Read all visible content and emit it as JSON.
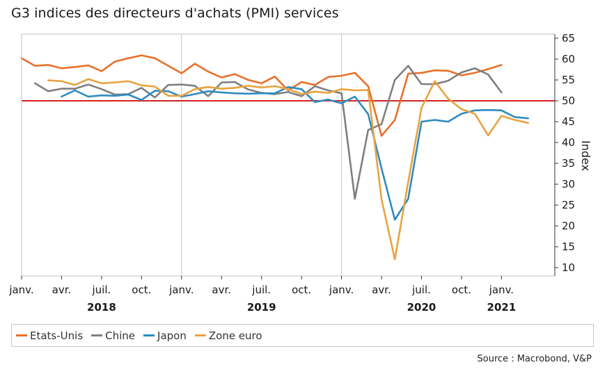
{
  "title": "G3 indices des directeurs d'achats (PMI) services",
  "source": "Source : Macrobond, V&P",
  "chart_data": {
    "type": "line",
    "ylabel": "Index",
    "ylim": [
      8,
      66
    ],
    "yticks": [
      10,
      15,
      20,
      25,
      30,
      35,
      40,
      45,
      50,
      55,
      60,
      65
    ],
    "reference_line": {
      "value": 50,
      "color": "#d62020"
    },
    "xlim": [
      "2018-01",
      "2021-05"
    ],
    "x_tick_labels": [
      {
        "date": "2018-01",
        "label": "janv."
      },
      {
        "date": "2018-04",
        "label": "avr."
      },
      {
        "date": "2018-07",
        "label": "juil."
      },
      {
        "date": "2018-10",
        "label": "oct."
      },
      {
        "date": "2019-01",
        "label": "janv."
      },
      {
        "date": "2019-04",
        "label": "avr."
      },
      {
        "date": "2019-07",
        "label": "juil."
      },
      {
        "date": "2019-10",
        "label": "oct."
      },
      {
        "date": "2020-01",
        "label": "janv."
      },
      {
        "date": "2020-04",
        "label": "avr."
      },
      {
        "date": "2020-07",
        "label": "juil."
      },
      {
        "date": "2020-10",
        "label": "oct."
      },
      {
        "date": "2021-01",
        "label": "janv."
      }
    ],
    "year_labels": [
      {
        "date": "2018-07",
        "label": "2018"
      },
      {
        "date": "2019-07",
        "label": "2019"
      },
      {
        "date": "2020-07",
        "label": "2020"
      },
      {
        "date": "2021-01",
        "label": "2021"
      }
    ],
    "year_gridlines": [
      "2019-01",
      "2020-01"
    ],
    "series": [
      {
        "name": "Etats-Unis",
        "color": "#e8702a",
        "start": "2018-01",
        "values": [
          60.2,
          58.4,
          58.6,
          57.8,
          58.1,
          58.5,
          57.1,
          59.4,
          60.2,
          60.9,
          60.2,
          58.4,
          56.6,
          58.9,
          57.0,
          55.6,
          56.4,
          55.0,
          54.2,
          55.8,
          52.5,
          54.5,
          53.8,
          55.7,
          56.0,
          56.7,
          53.5,
          41.6,
          45.4,
          56.5,
          56.7,
          57.3,
          57.2,
          56.1,
          56.7,
          57.6,
          58.6
        ]
      },
      {
        "name": "Chine",
        "color": "#7f7f7f",
        "start": "2018-02",
        "values": [
          54.2,
          52.3,
          52.9,
          52.9,
          53.9,
          52.8,
          51.5,
          51.6,
          53.1,
          50.8,
          53.8,
          53.9,
          53.6,
          51.1,
          54.4,
          54.5,
          52.7,
          51.9,
          51.6,
          52.1,
          51.1,
          53.5,
          52.5,
          51.8,
          26.5,
          43.0,
          44.4,
          55.0,
          58.4,
          54.0,
          54.0,
          54.8,
          56.8,
          57.8,
          56.3,
          52.0
        ]
      },
      {
        "name": "Japon",
        "color": "#2e8bbf",
        "start": "2018-04",
        "values": [
          51.0,
          52.5,
          51.0,
          51.3,
          51.2,
          51.5,
          50.2,
          52.4,
          52.3,
          51.0,
          51.6,
          52.3,
          52.0,
          51.8,
          51.7,
          51.8,
          51.8,
          53.3,
          52.8,
          49.7,
          50.3,
          49.4,
          51.0,
          46.8,
          33.8,
          21.5,
          26.5,
          45.0,
          45.4,
          45.0,
          46.9,
          47.7,
          47.8,
          47.7,
          46.1,
          45.8
        ]
      },
      {
        "name": "Zone euro",
        "color": "#e8a340",
        "start": "2018-03",
        "values": [
          54.9,
          54.7,
          53.8,
          55.2,
          54.2,
          54.4,
          54.7,
          53.7,
          53.4,
          51.2,
          51.2,
          52.8,
          53.3,
          52.9,
          53.1,
          53.6,
          53.2,
          53.5,
          52.8,
          51.6,
          52.2,
          51.9,
          52.8,
          52.5,
          52.6,
          26.4,
          12.0,
          30.5,
          48.3,
          54.7,
          50.5,
          48.0,
          46.9,
          41.7,
          46.4,
          45.4,
          44.7
        ]
      }
    ]
  }
}
